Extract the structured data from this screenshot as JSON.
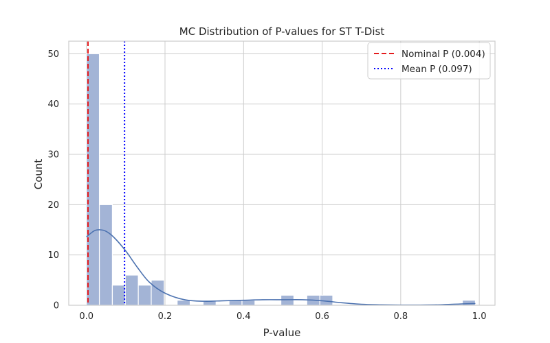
{
  "chart_data": {
    "type": "bar",
    "title": "MC Distribution of P-values for ST T-Dist",
    "xlabel": "P-value",
    "ylabel": "Count",
    "xlim": [
      -0.045,
      1.04
    ],
    "ylim": [
      0,
      52.5
    ],
    "xticks": [
      0.0,
      0.2,
      0.4,
      0.6,
      0.8,
      1.0
    ],
    "xtick_labels": [
      "0.0",
      "0.2",
      "0.4",
      "0.6",
      "0.8",
      "1.0"
    ],
    "yticks": [
      0,
      10,
      20,
      30,
      40,
      50
    ],
    "ytick_labels": [
      "0",
      "10",
      "20",
      "30",
      "40",
      "50"
    ],
    "grid": true,
    "legend_position": "top-right",
    "bins": {
      "start": 0.0,
      "width": 0.033,
      "counts": [
        50,
        20,
        4,
        6,
        4,
        5,
        0,
        1,
        0,
        1,
        0,
        1,
        1,
        0,
        0,
        2,
        0,
        2,
        2,
        0,
        0,
        0,
        0,
        0,
        0,
        0,
        0,
        0,
        0,
        1
      ]
    },
    "kde": {
      "x": [
        0.0,
        0.02,
        0.035,
        0.05,
        0.07,
        0.1,
        0.13,
        0.16,
        0.2,
        0.25,
        0.3,
        0.35,
        0.4,
        0.45,
        0.5,
        0.55,
        0.6,
        0.65,
        0.7,
        0.75,
        0.8,
        0.85,
        0.9,
        0.95,
        0.99
      ],
      "y": [
        13.6,
        14.8,
        15.0,
        14.7,
        13.5,
        10.8,
        7.5,
        4.6,
        2.4,
        1.1,
        0.8,
        0.9,
        1.0,
        1.1,
        1.1,
        1.1,
        0.9,
        0.5,
        0.2,
        0.1,
        0.05,
        0.05,
        0.1,
        0.25,
        0.35
      ]
    },
    "reference_lines": [
      {
        "name": "Nominal P (0.004)",
        "x": 0.004,
        "style": "dashed",
        "color": "#e41a1c"
      },
      {
        "name": "Mean P (0.097)",
        "x": 0.097,
        "style": "dotted",
        "color": "#0000ff"
      }
    ],
    "colors": {
      "bar_fill": "#a3b4d6",
      "bar_edge": "#ffffff",
      "kde_line": "#4c72b0",
      "grid": "#cccccc",
      "frame": "#cccccc"
    }
  }
}
